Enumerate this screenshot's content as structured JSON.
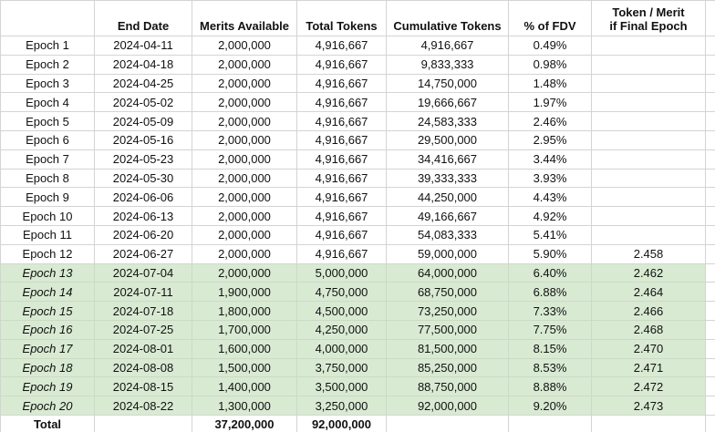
{
  "colors": {
    "highlight_green": "#d9ead3",
    "gridline": "#d4d4d4",
    "text": "#111111",
    "background": "#ffffff"
  },
  "table": {
    "columns": [
      {
        "label": ""
      },
      {
        "label": "End Date"
      },
      {
        "label": "Merits Available"
      },
      {
        "label": "Total Tokens"
      },
      {
        "label": "Cumulative Tokens"
      },
      {
        "label": "% of FDV"
      },
      {
        "label_line1": "Token / Merit",
        "label_line2": "if Final Epoch"
      }
    ],
    "rows": [
      {
        "epoch": "Epoch 1",
        "end_date": "2024-04-11",
        "merits": "2,000,000",
        "total_tokens": "4,916,667",
        "cumulative": "4,916,667",
        "fdv": "0.49%",
        "token_merit": "",
        "highlighted": false,
        "is_total": false
      },
      {
        "epoch": "Epoch 2",
        "end_date": "2024-04-18",
        "merits": "2,000,000",
        "total_tokens": "4,916,667",
        "cumulative": "9,833,333",
        "fdv": "0.98%",
        "token_merit": "",
        "highlighted": false,
        "is_total": false
      },
      {
        "epoch": "Epoch 3",
        "end_date": "2024-04-25",
        "merits": "2,000,000",
        "total_tokens": "4,916,667",
        "cumulative": "14,750,000",
        "fdv": "1.48%",
        "token_merit": "",
        "highlighted": false,
        "is_total": false
      },
      {
        "epoch": "Epoch 4",
        "end_date": "2024-05-02",
        "merits": "2,000,000",
        "total_tokens": "4,916,667",
        "cumulative": "19,666,667",
        "fdv": "1.97%",
        "token_merit": "",
        "highlighted": false,
        "is_total": false
      },
      {
        "epoch": "Epoch 5",
        "end_date": "2024-05-09",
        "merits": "2,000,000",
        "total_tokens": "4,916,667",
        "cumulative": "24,583,333",
        "fdv": "2.46%",
        "token_merit": "",
        "highlighted": false,
        "is_total": false
      },
      {
        "epoch": "Epoch 6",
        "end_date": "2024-05-16",
        "merits": "2,000,000",
        "total_tokens": "4,916,667",
        "cumulative": "29,500,000",
        "fdv": "2.95%",
        "token_merit": "",
        "highlighted": false,
        "is_total": false
      },
      {
        "epoch": "Epoch 7",
        "end_date": "2024-05-23",
        "merits": "2,000,000",
        "total_tokens": "4,916,667",
        "cumulative": "34,416,667",
        "fdv": "3.44%",
        "token_merit": "",
        "highlighted": false,
        "is_total": false
      },
      {
        "epoch": "Epoch 8",
        "end_date": "2024-05-30",
        "merits": "2,000,000",
        "total_tokens": "4,916,667",
        "cumulative": "39,333,333",
        "fdv": "3.93%",
        "token_merit": "",
        "highlighted": false,
        "is_total": false
      },
      {
        "epoch": "Epoch 9",
        "end_date": "2024-06-06",
        "merits": "2,000,000",
        "total_tokens": "4,916,667",
        "cumulative": "44,250,000",
        "fdv": "4.43%",
        "token_merit": "",
        "highlighted": false,
        "is_total": false
      },
      {
        "epoch": "Epoch 10",
        "end_date": "2024-06-13",
        "merits": "2,000,000",
        "total_tokens": "4,916,667",
        "cumulative": "49,166,667",
        "fdv": "4.92%",
        "token_merit": "",
        "highlighted": false,
        "is_total": false
      },
      {
        "epoch": "Epoch 11",
        "end_date": "2024-06-20",
        "merits": "2,000,000",
        "total_tokens": "4,916,667",
        "cumulative": "54,083,333",
        "fdv": "5.41%",
        "token_merit": "",
        "highlighted": false,
        "is_total": false
      },
      {
        "epoch": "Epoch 12",
        "end_date": "2024-06-27",
        "merits": "2,000,000",
        "total_tokens": "4,916,667",
        "cumulative": "59,000,000",
        "fdv": "5.90%",
        "token_merit": "2.458",
        "highlighted": false,
        "is_total": false
      },
      {
        "epoch": "Epoch 13",
        "end_date": "2024-07-04",
        "merits": "2,000,000",
        "total_tokens": "5,000,000",
        "cumulative": "64,000,000",
        "fdv": "6.40%",
        "token_merit": "2.462",
        "highlighted": true,
        "is_total": false
      },
      {
        "epoch": "Epoch 14",
        "end_date": "2024-07-11",
        "merits": "1,900,000",
        "total_tokens": "4,750,000",
        "cumulative": "68,750,000",
        "fdv": "6.88%",
        "token_merit": "2.464",
        "highlighted": true,
        "is_total": false
      },
      {
        "epoch": "Epoch 15",
        "end_date": "2024-07-18",
        "merits": "1,800,000",
        "total_tokens": "4,500,000",
        "cumulative": "73,250,000",
        "fdv": "7.33%",
        "token_merit": "2.466",
        "highlighted": true,
        "is_total": false
      },
      {
        "epoch": "Epoch 16",
        "end_date": "2024-07-25",
        "merits": "1,700,000",
        "total_tokens": "4,250,000",
        "cumulative": "77,500,000",
        "fdv": "7.75%",
        "token_merit": "2.468",
        "highlighted": true,
        "is_total": false
      },
      {
        "epoch": "Epoch 17",
        "end_date": "2024-08-01",
        "merits": "1,600,000",
        "total_tokens": "4,000,000",
        "cumulative": "81,500,000",
        "fdv": "8.15%",
        "token_merit": "2.470",
        "highlighted": true,
        "is_total": false
      },
      {
        "epoch": "Epoch 18",
        "end_date": "2024-08-08",
        "merits": "1,500,000",
        "total_tokens": "3,750,000",
        "cumulative": "85,250,000",
        "fdv": "8.53%",
        "token_merit": "2.471",
        "highlighted": true,
        "is_total": false
      },
      {
        "epoch": "Epoch 19",
        "end_date": "2024-08-15",
        "merits": "1,400,000",
        "total_tokens": "3,500,000",
        "cumulative": "88,750,000",
        "fdv": "8.88%",
        "token_merit": "2.472",
        "highlighted": true,
        "is_total": false
      },
      {
        "epoch": "Epoch 20",
        "end_date": "2024-08-22",
        "merits": "1,300,000",
        "total_tokens": "3,250,000",
        "cumulative": "92,000,000",
        "fdv": "9.20%",
        "token_merit": "2.473",
        "highlighted": true,
        "is_total": false
      },
      {
        "epoch": "Total",
        "end_date": "",
        "merits": "37,200,000",
        "total_tokens": "92,000,000",
        "cumulative": "",
        "fdv": "",
        "token_merit": "",
        "highlighted": false,
        "is_total": true
      }
    ]
  }
}
